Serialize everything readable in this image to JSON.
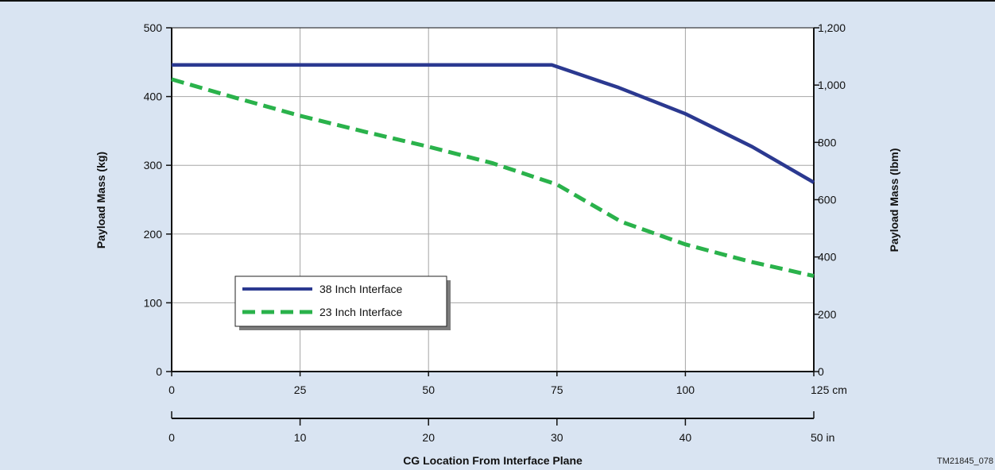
{
  "colors": {
    "background": "#d9e4f2",
    "plot_area": "#ffffff",
    "grid": "#a6a6a6",
    "axis": "#111111"
  },
  "figure_id": "TM21845_078",
  "chart_data": {
    "type": "line",
    "title": "",
    "xlabel": "CG Location From Interface Plane",
    "ylabel": "Payload Mass (kg)",
    "y2label": "Payload Mass (lbm)",
    "xlim": [
      0,
      125
    ],
    "ylim": [
      0,
      500
    ],
    "x_ticks": [
      0,
      25,
      50,
      75,
      100,
      125
    ],
    "x_tick_labels": [
      "0",
      "25",
      "50",
      "75",
      "100",
      "125 cm"
    ],
    "y_ticks": [
      0,
      100,
      200,
      300,
      400,
      500
    ],
    "y_tick_labels": [
      "0",
      "100",
      "200",
      "300",
      "400",
      "500"
    ],
    "y2_ticks": [
      0,
      200,
      400,
      600,
      800,
      1000,
      1200
    ],
    "y2_tick_labels": [
      "0",
      "200",
      "400",
      "600",
      "800",
      "1,000",
      "1,200"
    ],
    "x2_ticks": [
      0,
      10,
      20,
      30,
      40,
      50
    ],
    "x2_tick_labels": [
      "0",
      "10",
      "20",
      "30",
      "40",
      "50 in"
    ],
    "grid": true,
    "legend_position": "bottom-left",
    "series": [
      {
        "name": "38 Inch Interface",
        "color": "#2b3990",
        "style": "solid",
        "x": [
          0,
          25,
          50,
          74,
          87,
          100,
          113,
          125
        ],
        "y": [
          446,
          446,
          446,
          446,
          413,
          375,
          327,
          275
        ]
      },
      {
        "name": "23 Inch Interface",
        "color": "#2ab24b",
        "style": "dashed",
        "x": [
          0,
          12.5,
          25,
          37.5,
          50,
          62.5,
          75,
          87.5,
          100,
          112.5,
          125
        ],
        "y": [
          425,
          398,
          372,
          349,
          327,
          303,
          272,
          218,
          185,
          160,
          139
        ]
      }
    ]
  }
}
